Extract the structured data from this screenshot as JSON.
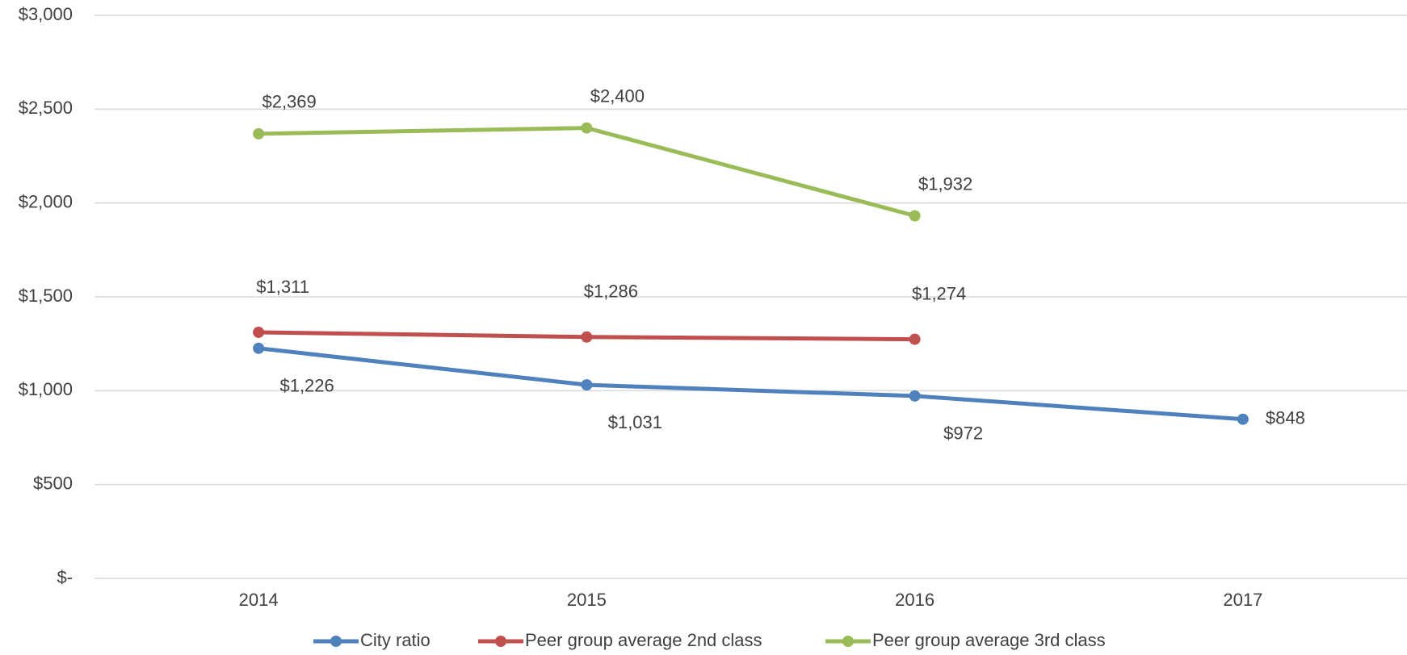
{
  "chart_data": {
    "type": "line",
    "categories": [
      "2014",
      "2015",
      "2016",
      "2017"
    ],
    "series": [
      {
        "name": "City ratio",
        "color": "#4f81bd",
        "values": [
          1226,
          1031,
          972,
          848
        ],
        "value_labels": [
          "$1,226",
          "$1,031",
          "$972",
          "$848"
        ]
      },
      {
        "name": "Peer group average 2nd class",
        "color": "#c0504d",
        "values": [
          1311,
          1286,
          1274,
          null
        ],
        "value_labels": [
          "$1,311",
          "$1,286",
          "$1,274",
          null
        ]
      },
      {
        "name": "Peer group average 3rd class",
        "color": "#9bbb59",
        "values": [
          2369,
          2400,
          1932,
          null
        ],
        "value_labels": [
          "$2,369",
          "$2,400",
          "$1,932",
          null
        ]
      }
    ],
    "ylim": [
      0,
      3000
    ],
    "yticks": [
      {
        "value": 0,
        "label": "$-"
      },
      {
        "value": 500,
        "label": "$500"
      },
      {
        "value": 1000,
        "label": "$1,000"
      },
      {
        "value": 1500,
        "label": "$1,500"
      },
      {
        "value": 2000,
        "label": "$2,000"
      },
      {
        "value": 2500,
        "label": "$2,500"
      },
      {
        "value": 3000,
        "label": "$3,000"
      }
    ],
    "grid": true,
    "legend": "bottom"
  }
}
